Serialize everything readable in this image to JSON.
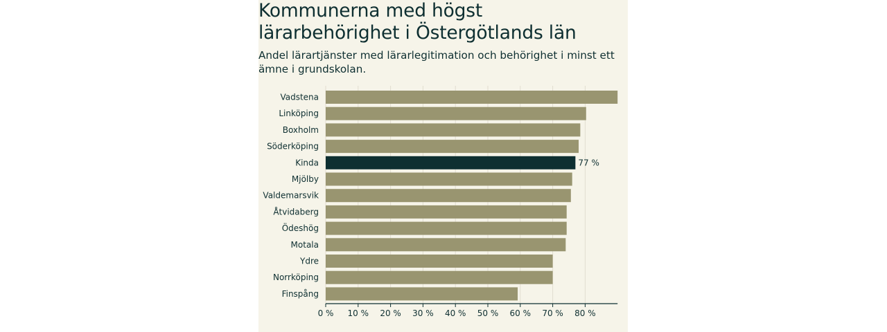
{
  "colors": {
    "background": "#f6f4e9",
    "bar": "#999570",
    "highlight": "#0e2f31",
    "text": "#0e2f31",
    "grid": "#e1ddd0"
  },
  "chart_data": {
    "type": "bar",
    "orientation": "horizontal",
    "title": "Kommunerna med högst lärarbehörighet i Östergötlands län",
    "subtitle": "Andel lärartjänster med lärarlegitimation och behörighet i minst ett ämne i grundskolan.",
    "xlabel": "",
    "ylabel": "",
    "xlim": [
      0,
      90
    ],
    "grid": true,
    "ticks": [
      {
        "value": 0,
        "label": "0 %"
      },
      {
        "value": 10,
        "label": "10 %"
      },
      {
        "value": 20,
        "label": "20 %"
      },
      {
        "value": 30,
        "label": "30 %"
      },
      {
        "value": 40,
        "label": "40 %"
      },
      {
        "value": 50,
        "label": "50 %"
      },
      {
        "value": 60,
        "label": "60 %"
      },
      {
        "value": 70,
        "label": "70 %"
      },
      {
        "value": 80,
        "label": "80 %"
      }
    ],
    "categories": [
      "Vadstena",
      "Linköping",
      "Boxholm",
      "Söderköping",
      "Kinda",
      "Mjölby",
      "Valdemarsvik",
      "Åtvidaberg",
      "Ödeshög",
      "Motala",
      "Ydre",
      "Norrköping",
      "Finspång"
    ],
    "values": [
      90,
      80.3,
      78.5,
      78,
      77,
      76,
      75.6,
      74.3,
      74.3,
      74,
      70,
      70,
      59.2
    ],
    "highlight": {
      "category": "Kinda",
      "value_label": "77 %"
    }
  }
}
